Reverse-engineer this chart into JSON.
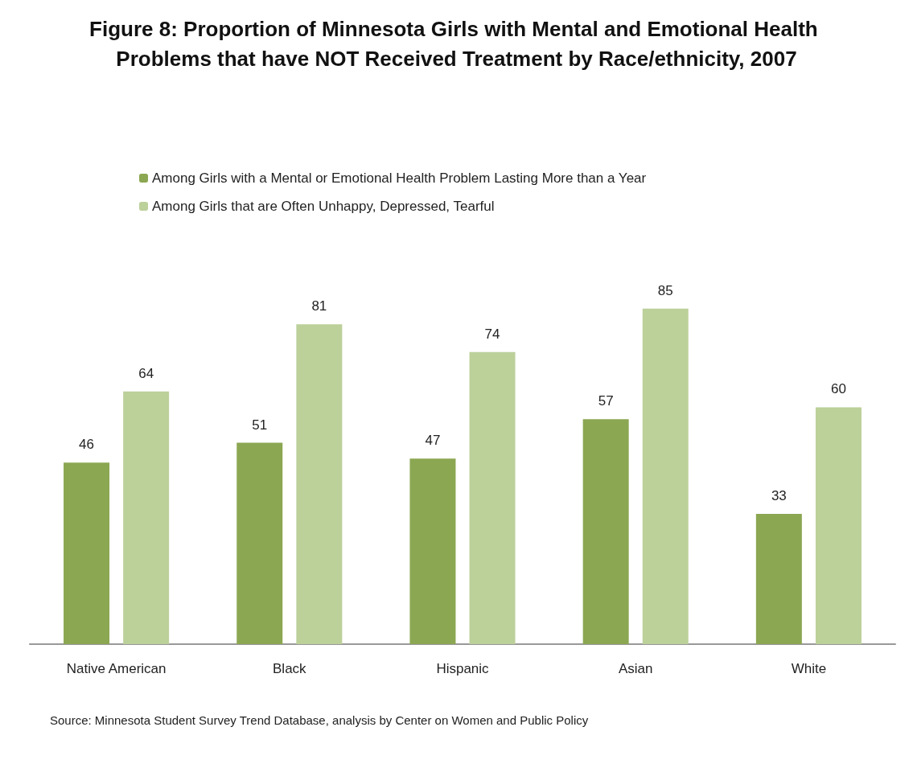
{
  "chart_data": {
    "type": "bar",
    "title": "Figure 8: Proportion of Minnesota Girls with Mental and Emotional Health Problems that have NOT Received Treatment by Race/ethnicity, 2007",
    "categories": [
      "Native American",
      "Black",
      "Hispanic",
      "Asian",
      "White"
    ],
    "series": [
      {
        "name": "Among Girls with a Mental or Emotional Health Problem Lasting More than a Year",
        "color": "#8ba752",
        "values": [
          46,
          51,
          47,
          57,
          33
        ]
      },
      {
        "name": "Among Girls that are Often Unhappy, Depressed, Tearful",
        "color": "#bcd09a",
        "values": [
          64,
          81,
          74,
          85,
          60
        ]
      }
    ],
    "data_labels": true,
    "legend": "top left",
    "annotations": [
      "Source: Minnesota Student Survey Trend Database, analysis by Center on Women and Public Policy"
    ]
  }
}
